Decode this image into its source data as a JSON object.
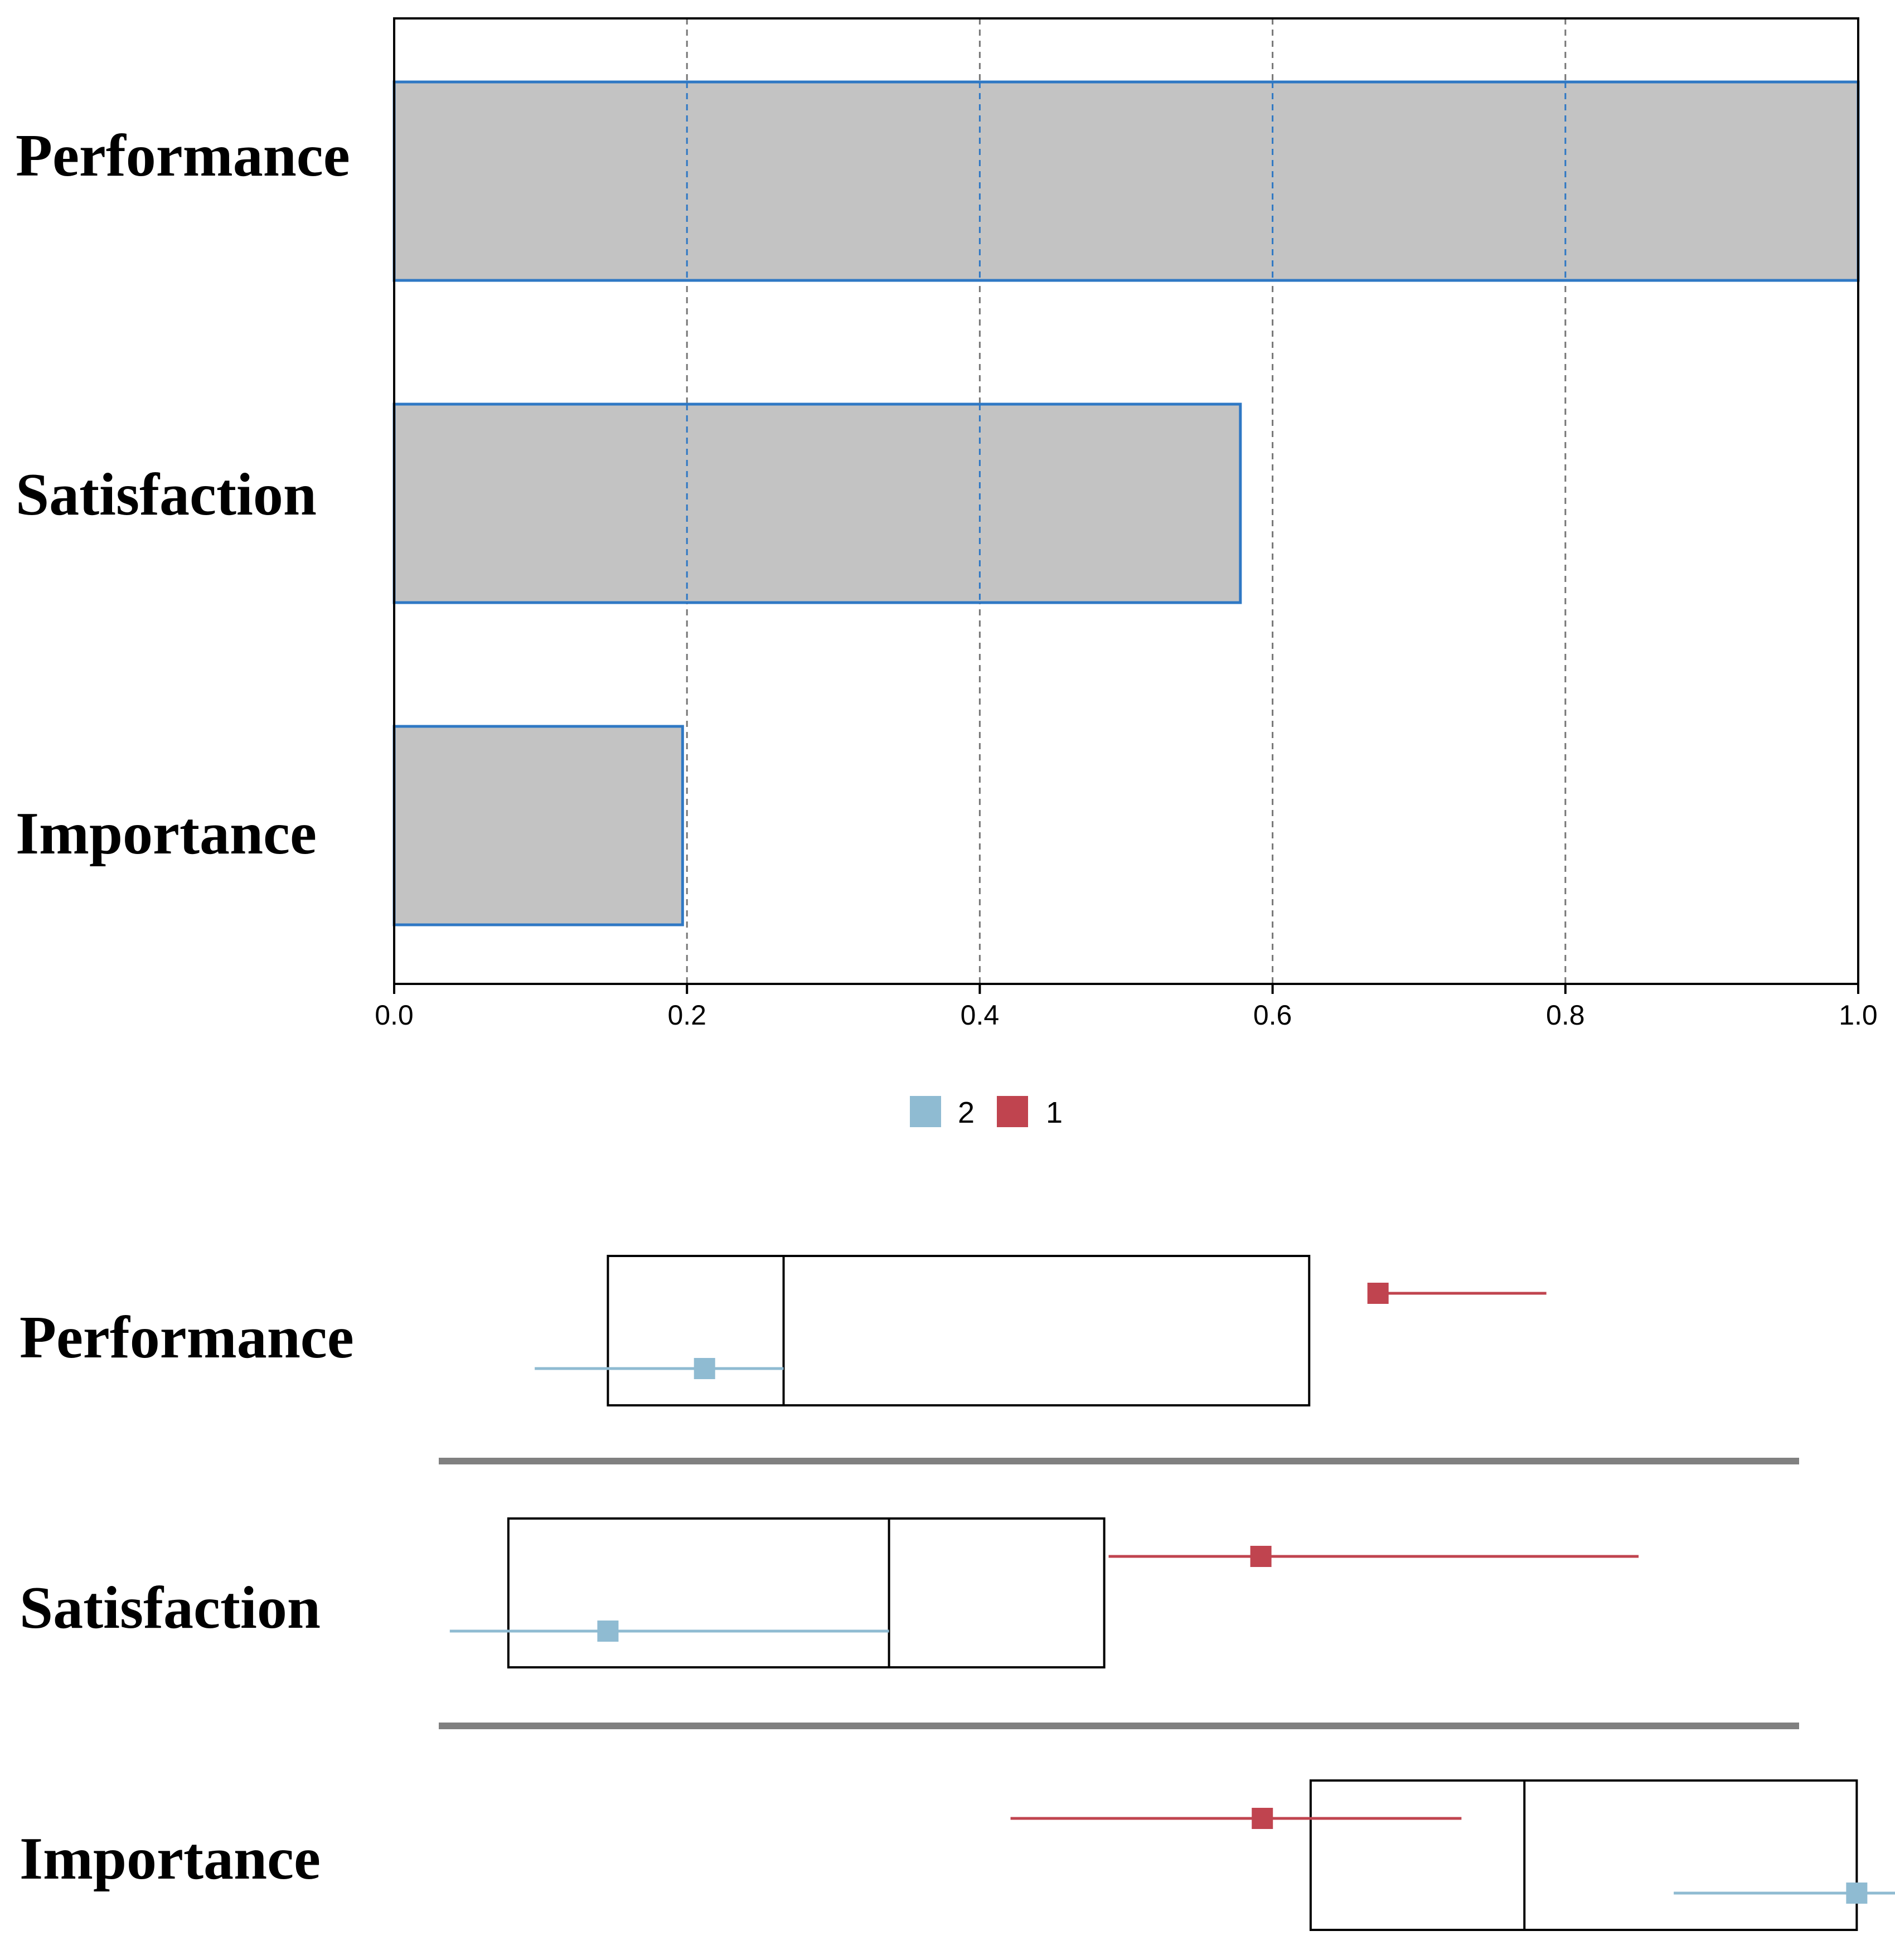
{
  "chart_data": [
    {
      "type": "bar",
      "orientation": "horizontal",
      "title": "",
      "xlabel": "",
      "ylabel": "",
      "categories": [
        "Performance",
        "Satisfaction",
        "Importance"
      ],
      "values": [
        1.0,
        0.578,
        0.197
      ],
      "xlim": [
        0.0,
        1.0
      ],
      "xticks": [
        "0.0",
        "0.2",
        "0.4",
        "0.6",
        "0.8",
        "1.0"
      ],
      "xtick_values": [
        0.0,
        0.2,
        0.4,
        0.6,
        0.8,
        1.0
      ],
      "grid": "vertical dashed",
      "colors": {
        "bar_fill": "#c3c3c3",
        "bar_edge": "#2f78c4",
        "grid": "#777777"
      }
    },
    {
      "type": "interval",
      "title": "",
      "xlabel": "",
      "ylabel": "",
      "categories": [
        "Performance",
        "Satisfaction",
        "Importance"
      ],
      "xlim": [
        0.0,
        1.0
      ],
      "legend": {
        "position": "top-center",
        "entries": [
          {
            "label": "2",
            "color": "#8fbbd2"
          },
          {
            "label": "1",
            "color": "#c0444f"
          }
        ]
      },
      "boxes": [
        {
          "category": "Performance",
          "low": 0.146,
          "split": 0.266,
          "high": 0.625
        },
        {
          "category": "Satisfaction",
          "low": 0.078,
          "split": 0.338,
          "high": 0.485
        },
        {
          "category": "Importance",
          "low": 0.626,
          "split": 0.772,
          "high": 0.999
        }
      ],
      "series": [
        {
          "name": "2",
          "color": "#8fbbd2",
          "points": [
            {
              "category": "Performance",
              "value": 0.212,
              "low": 0.096,
              "high": 0.266
            },
            {
              "category": "Satisfaction",
              "value": 0.146,
              "low": 0.038,
              "high": 0.338
            },
            {
              "category": "Importance",
              "value": 0.999,
              "low": 0.874,
              "high": 1.04
            }
          ]
        },
        {
          "name": "1",
          "color": "#c0444f",
          "points": [
            {
              "category": "Performance",
              "value": 0.672,
              "low": 0.672,
              "high": 0.787
            },
            {
              "category": "Satisfaction",
              "value": 0.592,
              "low": 0.488,
              "high": 0.85
            },
            {
              "category": "Importance",
              "value": 0.593,
              "low": 0.421,
              "high": 0.729
            }
          ]
        }
      ]
    }
  ]
}
